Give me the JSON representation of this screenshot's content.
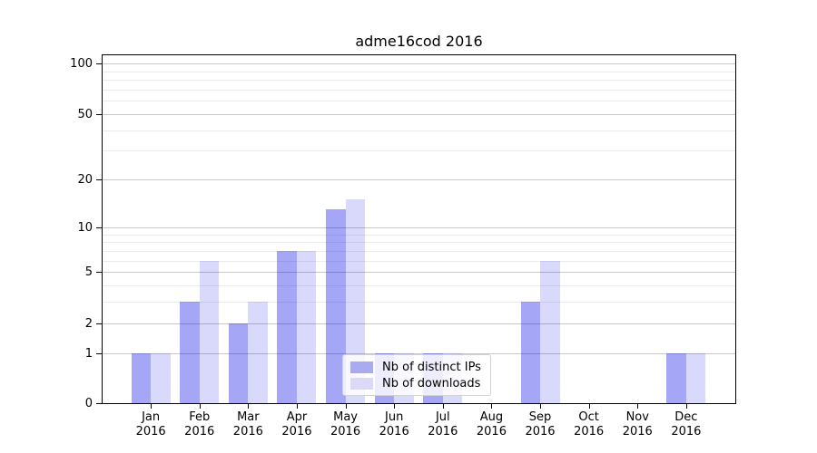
{
  "title": "adme16cod 2016",
  "chart_data": {
    "type": "bar",
    "title": "adme16cod 2016",
    "categories": [
      "Jan 2016",
      "Feb 2016",
      "Mar 2016",
      "Apr 2016",
      "May 2016",
      "Jun 2016",
      "Jul 2016",
      "Aug 2016",
      "Sep 2016",
      "Oct 2016",
      "Nov 2016",
      "Dec 2016"
    ],
    "series": [
      {
        "name": "Nb of distinct IPs",
        "values": [
          1,
          3,
          2,
          7,
          13,
          1,
          1,
          0,
          3,
          0,
          0,
          1
        ],
        "color": "rgba(0,0,230,0.35)",
        "legend_color": "#aaaaf0"
      },
      {
        "name": "Nb of downloads",
        "values": [
          1,
          6,
          3,
          7,
          15,
          1,
          1,
          0,
          6,
          0,
          0,
          1
        ],
        "color": "rgba(0,0,230,0.15)",
        "legend_color": "#dadaf8"
      }
    ],
    "xlabel": "",
    "ylabel": "",
    "yscale": "log1p",
    "ylim": [
      0,
      113
    ],
    "y_major_ticks": [
      0,
      1,
      2,
      5,
      10,
      20,
      50,
      100
    ],
    "y_minor_gridlines": [
      3,
      4,
      6,
      7,
      8,
      9,
      30,
      40,
      60,
      70,
      80,
      90
    ],
    "grid": true,
    "legend_position": "lower center"
  },
  "colors": {
    "axis": "#000000",
    "major_grid": "#c7c7c7",
    "minor_grid": "#ebebeb",
    "legend_border": "#d2d2d2",
    "legend_background": "rgba(255,255,255,0.8)"
  }
}
